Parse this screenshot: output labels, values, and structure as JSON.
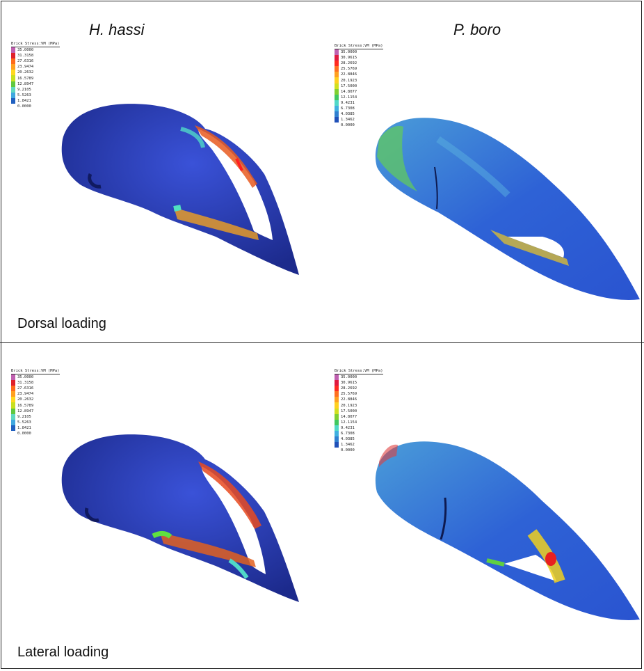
{
  "species": {
    "left": "H. hassi",
    "right": "P. boro"
  },
  "rows": [
    {
      "label": "Dorsal loading"
    },
    {
      "label": "Lateral loading"
    }
  ],
  "legend_title": "Brick Stress:VM (MPa)",
  "legends": {
    "h_hassi": {
      "values": [
        "35.0000",
        "31.3158",
        "27.6316",
        "23.9474",
        "20.2632",
        "16.5789",
        "12.8947",
        "9.2105",
        "5.5263",
        "1.8421",
        "0.0000"
      ],
      "colors": [
        "#c060b0",
        "#e0202a",
        "#ff6a1a",
        "#ffa020",
        "#ffd820",
        "#c8e020",
        "#60c840",
        "#60d8c0",
        "#40a8e0",
        "#2060c0",
        ""
      ]
    },
    "p_boro": {
      "values": [
        "35.0000",
        "30.9615",
        "28.2692",
        "25.5769",
        "22.8846",
        "20.1923",
        "17.5000",
        "14.8077",
        "12.1154",
        "9.4231",
        "6.7308",
        "4.0385",
        "1.3462",
        "0.0000"
      ],
      "colors": [
        "#c060b0",
        "#e01a40",
        "#ff2a20",
        "#ff7020",
        "#ffa020",
        "#ffd020",
        "#d0e020",
        "#80d030",
        "#40c860",
        "#50d8c8",
        "#40b0e0",
        "#3080d0",
        "#2050b8",
        ""
      ]
    }
  }
}
